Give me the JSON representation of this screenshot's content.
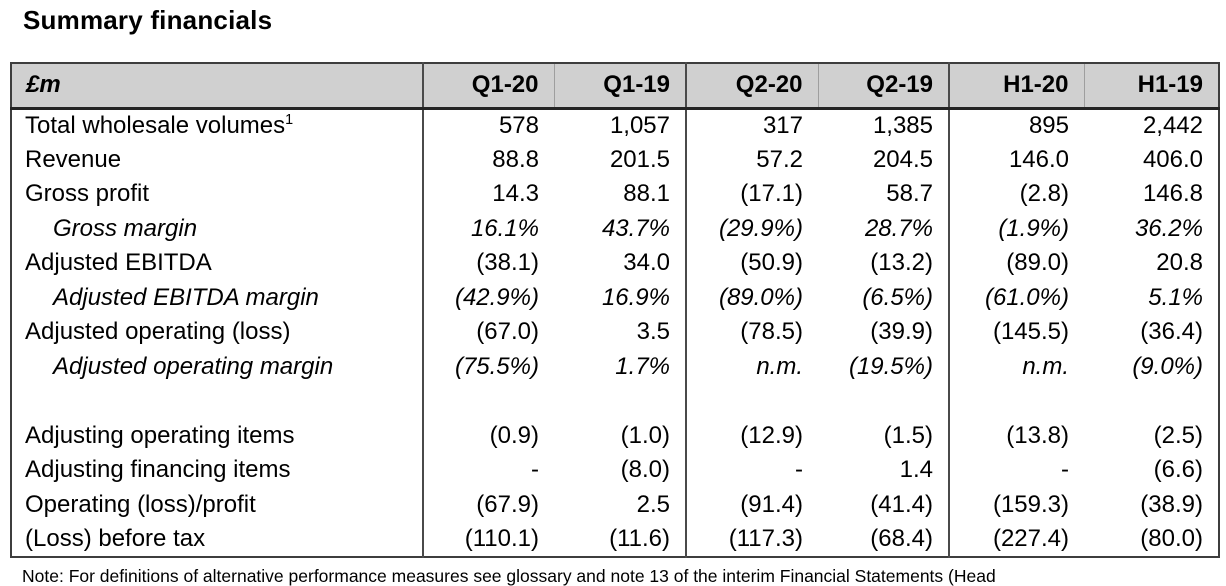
{
  "title": "Summary financials",
  "table": {
    "unit_header": "£m",
    "columns": [
      "Q1-20",
      "Q1-19",
      "Q2-20",
      "Q2-19",
      "H1-20",
      "H1-19"
    ],
    "rows": [
      {
        "label": "Total wholesale volumes",
        "superscript": "1",
        "style": "normal",
        "values": [
          "578",
          "1,057",
          "317",
          "1,385",
          "895",
          "2,442"
        ]
      },
      {
        "label": "Revenue",
        "style": "normal",
        "values": [
          "88.8",
          "201.5",
          "57.2",
          "204.5",
          "146.0",
          "406.0"
        ]
      },
      {
        "label": "Gross profit",
        "style": "normal",
        "values": [
          "14.3",
          "88.1",
          "(17.1)",
          "58.7",
          "(2.8)",
          "146.8"
        ]
      },
      {
        "label": "Gross margin",
        "style": "margin",
        "values": [
          "16.1%",
          "43.7%",
          "(29.9%)",
          "28.7%",
          "(1.9%)",
          "36.2%"
        ]
      },
      {
        "label": "Adjusted EBITDA",
        "style": "normal",
        "values": [
          "(38.1)",
          "34.0",
          "(50.9)",
          "(13.2)",
          "(89.0)",
          "20.8"
        ]
      },
      {
        "label": "Adjusted EBITDA margin",
        "style": "margin",
        "values": [
          "(42.9%)",
          "16.9%",
          "(89.0%)",
          "(6.5%)",
          "(61.0%)",
          "5.1%"
        ]
      },
      {
        "label": "Adjusted operating (loss)",
        "style": "normal",
        "values": [
          "(67.0)",
          "3.5",
          "(78.5)",
          "(39.9)",
          "(145.5)",
          "(36.4)"
        ]
      },
      {
        "label": "Adjusted operating margin",
        "style": "margin",
        "values": [
          "(75.5%)",
          "1.7%",
          "n.m.",
          "(19.5%)",
          "n.m.",
          "(9.0%)"
        ]
      },
      {
        "label": "",
        "style": "blank",
        "values": [
          "",
          "",
          "",
          "",
          "",
          ""
        ]
      },
      {
        "label": "Adjusting operating items",
        "style": "normal",
        "values": [
          "(0.9)",
          "(1.0)",
          "(12.9)",
          "(1.5)",
          "(13.8)",
          "(2.5)"
        ]
      },
      {
        "label": "Adjusting financing items",
        "style": "normal",
        "values": [
          "-",
          "(8.0)",
          "-",
          "1.4",
          "-",
          "(6.6)"
        ]
      },
      {
        "label": "Operating (loss)/profit",
        "style": "normal",
        "values": [
          "(67.9)",
          "2.5",
          "(91.4)",
          "(41.4)",
          "(159.3)",
          "(38.9)"
        ]
      },
      {
        "label": "(Loss) before tax",
        "style": "normal",
        "values": [
          "(110.1)",
          "(11.6)",
          "(117.3)",
          "(68.4)",
          "(227.4)",
          "(80.0)"
        ]
      }
    ]
  },
  "note": "Note: For definitions of alternative performance measures see glossary and note 13 of the interim Financial Statements (Head",
  "colors": {
    "header_bg": "#d0d0d0",
    "border_dark": "#3d3d3d",
    "border_light": "#9e9e9e",
    "text": "#000000"
  }
}
